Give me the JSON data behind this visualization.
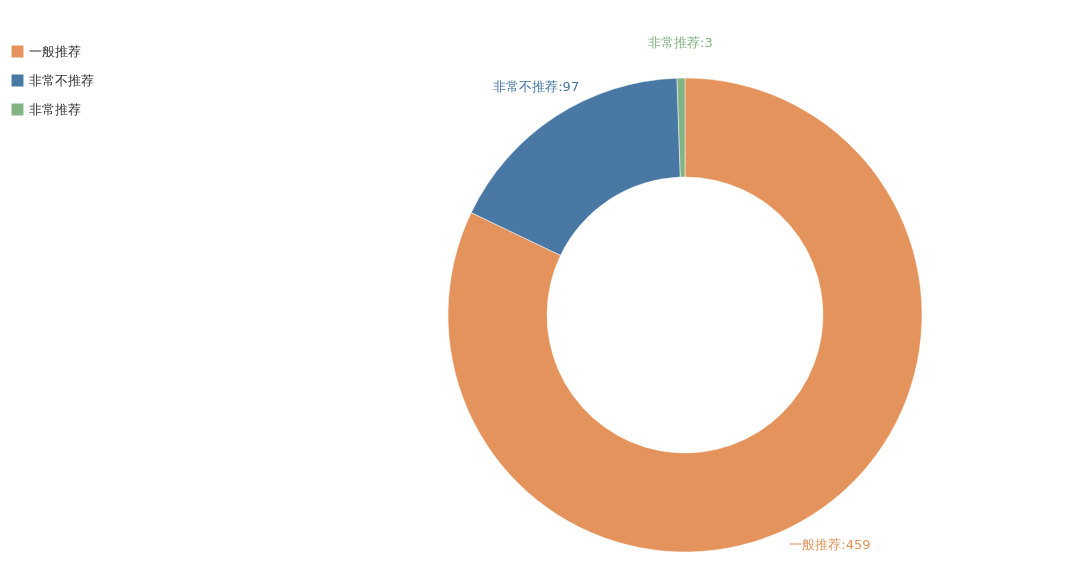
{
  "chart_data": {
    "type": "donut",
    "categories": [
      "一般推荐",
      "非常不推荐",
      "非常推荐"
    ],
    "values": [
      459,
      97,
      3
    ],
    "colors": [
      "#e3935b",
      "#4878a3",
      "#82b383"
    ],
    "legend": "top left",
    "value_labels": [
      "一般推荐:459",
      "非常不推荐:97",
      "非常推荐:3"
    ]
  }
}
